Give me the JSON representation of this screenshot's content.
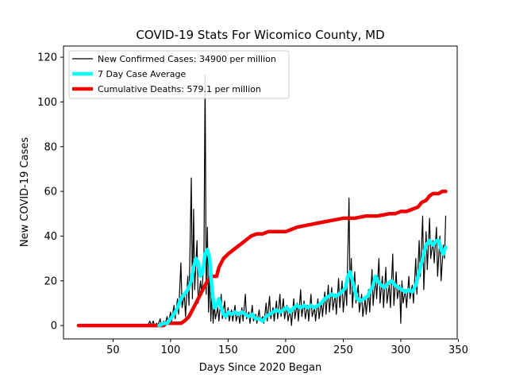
{
  "chart_data": {
    "type": "line",
    "title": "COVID-19 Stats For Wicomico County, MD",
    "xlabel": "Days Since 2020 Began",
    "ylabel": "New COVID-19 Cases",
    "xlim": [
      7,
      349
    ],
    "ylim": [
      -6,
      125
    ],
    "xticks": [
      50,
      100,
      150,
      200,
      250,
      300,
      350
    ],
    "yticks": [
      0,
      20,
      40,
      60,
      80,
      100,
      120
    ],
    "grid": false,
    "legend_position": "top-left",
    "series": [
      {
        "name": "New Confirmed Cases: 34900 per million",
        "color": "#000000",
        "points": [
          [
            20,
            0
          ],
          [
            80,
            0
          ],
          [
            82,
            2
          ],
          [
            83,
            0
          ],
          [
            85,
            2
          ],
          [
            86,
            0
          ],
          [
            88,
            1
          ],
          [
            89,
            0
          ],
          [
            91,
            3
          ],
          [
            92,
            0
          ],
          [
            94,
            2
          ],
          [
            95,
            0
          ],
          [
            97,
            4
          ],
          [
            98,
            1
          ],
          [
            100,
            6
          ],
          [
            101,
            2
          ],
          [
            103,
            9
          ],
          [
            104,
            3
          ],
          [
            106,
            12
          ],
          [
            107,
            5
          ],
          [
            109,
            28
          ],
          [
            110,
            8
          ],
          [
            112,
            14
          ],
          [
            113,
            4
          ],
          [
            115,
            22
          ],
          [
            116,
            9
          ],
          [
            118,
            66
          ],
          [
            119,
            12
          ],
          [
            120,
            52
          ],
          [
            121,
            16
          ],
          [
            123,
            38
          ],
          [
            124,
            10
          ],
          [
            126,
            20
          ],
          [
            127,
            14
          ],
          [
            129,
            28
          ],
          [
            130,
            112
          ],
          [
            131,
            14
          ],
          [
            132,
            44
          ],
          [
            133,
            6
          ],
          [
            134,
            26
          ],
          [
            135,
            2
          ],
          [
            136,
            16
          ],
          [
            137,
            1
          ],
          [
            138,
            10
          ],
          [
            139,
            3
          ],
          [
            141,
            8
          ],
          [
            142,
            2
          ],
          [
            144,
            14
          ],
          [
            145,
            3
          ],
          [
            147,
            11
          ],
          [
            148,
            3
          ],
          [
            150,
            8
          ],
          [
            151,
            2
          ],
          [
            153,
            7
          ],
          [
            154,
            2
          ],
          [
            156,
            9
          ],
          [
            157,
            2
          ],
          [
            159,
            6
          ],
          [
            160,
            1
          ],
          [
            162,
            8
          ],
          [
            163,
            2
          ],
          [
            165,
            14
          ],
          [
            166,
            3
          ],
          [
            168,
            6
          ],
          [
            169,
            1
          ],
          [
            171,
            9
          ],
          [
            172,
            2
          ],
          [
            174,
            5
          ],
          [
            175,
            1
          ],
          [
            177,
            7
          ],
          [
            178,
            2
          ],
          [
            180,
            4
          ],
          [
            181,
            1
          ],
          [
            183,
            10
          ],
          [
            184,
            2
          ],
          [
            186,
            13
          ],
          [
            187,
            3
          ],
          [
            189,
            8
          ],
          [
            190,
            2
          ],
          [
            192,
            11
          ],
          [
            193,
            3
          ],
          [
            195,
            14
          ],
          [
            196,
            4
          ],
          [
            198,
            12
          ],
          [
            199,
            3
          ],
          [
            201,
            9
          ],
          [
            202,
            2
          ],
          [
            204,
            7
          ],
          [
            205,
            0
          ],
          [
            207,
            12
          ],
          [
            208,
            3
          ],
          [
            210,
            10
          ],
          [
            211,
            2
          ],
          [
            213,
            16
          ],
          [
            214,
            4
          ],
          [
            216,
            11
          ],
          [
            217,
            3
          ],
          [
            219,
            9
          ],
          [
            220,
            2
          ],
          [
            222,
            14
          ],
          [
            223,
            4
          ],
          [
            225,
            8
          ],
          [
            226,
            2
          ],
          [
            228,
            12
          ],
          [
            229,
            3
          ],
          [
            231,
            11
          ],
          [
            232,
            4
          ],
          [
            234,
            15
          ],
          [
            235,
            5
          ],
          [
            237,
            18
          ],
          [
            238,
            6
          ],
          [
            240,
            17
          ],
          [
            241,
            7
          ],
          [
            243,
            14
          ],
          [
            244,
            5
          ],
          [
            246,
            21
          ],
          [
            247,
            8
          ],
          [
            249,
            20
          ],
          [
            250,
            6
          ],
          [
            252,
            18
          ],
          [
            253,
            9
          ],
          [
            255,
            57
          ],
          [
            256,
            14
          ],
          [
            257,
            30
          ],
          [
            258,
            8
          ],
          [
            260,
            24
          ],
          [
            261,
            10
          ],
          [
            263,
            18
          ],
          [
            264,
            6
          ],
          [
            266,
            14
          ],
          [
            267,
            4
          ],
          [
            269,
            12
          ],
          [
            270,
            5
          ],
          [
            272,
            16
          ],
          [
            273,
            6
          ],
          [
            275,
            25
          ],
          [
            276,
            9
          ],
          [
            278,
            22
          ],
          [
            279,
            12
          ],
          [
            281,
            30
          ],
          [
            282,
            10
          ],
          [
            284,
            22
          ],
          [
            285,
            8
          ],
          [
            287,
            26
          ],
          [
            288,
            10
          ],
          [
            290,
            18
          ],
          [
            291,
            8
          ],
          [
            293,
            32
          ],
          [
            294,
            9
          ],
          [
            296,
            24
          ],
          [
            297,
            12
          ],
          [
            299,
            18
          ],
          [
            300,
            1
          ],
          [
            301,
            20
          ],
          [
            302,
            10
          ],
          [
            304,
            16
          ],
          [
            305,
            8
          ],
          [
            307,
            22
          ],
          [
            308,
            12
          ],
          [
            310,
            18
          ],
          [
            311,
            10
          ],
          [
            313,
            30
          ],
          [
            314,
            14
          ],
          [
            316,
            38
          ],
          [
            317,
            22
          ],
          [
            319,
            49
          ],
          [
            320,
            16
          ],
          [
            322,
            42
          ],
          [
            323,
            25
          ],
          [
            325,
            48
          ],
          [
            326,
            30
          ],
          [
            328,
            38
          ],
          [
            329,
            28
          ],
          [
            331,
            44
          ],
          [
            332,
            22
          ],
          [
            334,
            40
          ],
          [
            335,
            20
          ],
          [
            337,
            36
          ],
          [
            338,
            30
          ],
          [
            339,
            49
          ]
        ]
      },
      {
        "name": "7 Day Case Average",
        "color": "#00ffff",
        "points": [
          [
            90,
            0
          ],
          [
            94,
            1
          ],
          [
            97,
            1
          ],
          [
            100,
            3
          ],
          [
            103,
            5
          ],
          [
            106,
            8
          ],
          [
            109,
            12
          ],
          [
            112,
            14
          ],
          [
            115,
            16
          ],
          [
            118,
            20
          ],
          [
            120,
            26
          ],
          [
            122,
            30
          ],
          [
            124,
            28
          ],
          [
            126,
            22
          ],
          [
            128,
            24
          ],
          [
            130,
            32
          ],
          [
            132,
            34
          ],
          [
            134,
            30
          ],
          [
            136,
            16
          ],
          [
            138,
            8
          ],
          [
            140,
            9
          ],
          [
            142,
            12
          ],
          [
            144,
            8
          ],
          [
            146,
            5
          ],
          [
            148,
            4
          ],
          [
            150,
            6
          ],
          [
            153,
            5
          ],
          [
            156,
            6
          ],
          [
            159,
            5
          ],
          [
            162,
            6
          ],
          [
            165,
            5
          ],
          [
            168,
            4
          ],
          [
            171,
            5
          ],
          [
            174,
            3
          ],
          [
            177,
            3
          ],
          [
            180,
            2
          ],
          [
            183,
            4
          ],
          [
            186,
            5
          ],
          [
            189,
            6
          ],
          [
            192,
            7
          ],
          [
            195,
            6
          ],
          [
            198,
            7
          ],
          [
            201,
            8
          ],
          [
            204,
            6
          ],
          [
            207,
            8
          ],
          [
            210,
            9
          ],
          [
            213,
            8
          ],
          [
            216,
            9
          ],
          [
            219,
            8
          ],
          [
            222,
            9
          ],
          [
            225,
            8
          ],
          [
            228,
            9
          ],
          [
            231,
            10
          ],
          [
            234,
            12
          ],
          [
            237,
            13
          ],
          [
            240,
            14
          ],
          [
            243,
            13
          ],
          [
            246,
            14
          ],
          [
            249,
            15
          ],
          [
            252,
            17
          ],
          [
            254,
            22
          ],
          [
            256,
            24
          ],
          [
            258,
            20
          ],
          [
            260,
            16
          ],
          [
            262,
            12
          ],
          [
            265,
            11
          ],
          [
            268,
            12
          ],
          [
            271,
            13
          ],
          [
            274,
            16
          ],
          [
            276,
            18
          ],
          [
            278,
            22
          ],
          [
            280,
            20
          ],
          [
            283,
            18
          ],
          [
            286,
            17
          ],
          [
            289,
            19
          ],
          [
            292,
            20
          ],
          [
            295,
            18
          ],
          [
            298,
            17
          ],
          [
            301,
            16
          ],
          [
            304,
            15
          ],
          [
            307,
            16
          ],
          [
            310,
            15
          ],
          [
            313,
            18
          ],
          [
            316,
            24
          ],
          [
            319,
            30
          ],
          [
            322,
            36
          ],
          [
            325,
            38
          ],
          [
            328,
            36
          ],
          [
            331,
            38
          ],
          [
            333,
            38
          ],
          [
            335,
            34
          ],
          [
            337,
            32
          ],
          [
            338,
            34
          ],
          [
            339,
            35
          ]
        ]
      },
      {
        "name": "Cumulative Deaths: 579.1 per million",
        "color": "#ee0000",
        "points": [
          [
            20,
            0
          ],
          [
            94,
            0
          ],
          [
            96,
            1
          ],
          [
            109,
            1
          ],
          [
            112,
            2
          ],
          [
            116,
            4
          ],
          [
            120,
            8
          ],
          [
            124,
            12
          ],
          [
            128,
            16
          ],
          [
            132,
            20
          ],
          [
            136,
            22
          ],
          [
            140,
            22
          ],
          [
            142,
            26
          ],
          [
            146,
            30
          ],
          [
            150,
            32
          ],
          [
            155,
            34
          ],
          [
            160,
            36
          ],
          [
            165,
            38
          ],
          [
            170,
            40
          ],
          [
            175,
            41
          ],
          [
            180,
            41
          ],
          [
            185,
            42
          ],
          [
            190,
            42
          ],
          [
            200,
            42
          ],
          [
            205,
            43
          ],
          [
            210,
            44
          ],
          [
            220,
            45
          ],
          [
            230,
            46
          ],
          [
            240,
            47
          ],
          [
            250,
            48
          ],
          [
            260,
            48
          ],
          [
            270,
            49
          ],
          [
            280,
            49
          ],
          [
            290,
            50
          ],
          [
            295,
            50
          ],
          [
            300,
            51
          ],
          [
            305,
            51
          ],
          [
            310,
            52
          ],
          [
            315,
            53
          ],
          [
            318,
            55
          ],
          [
            322,
            56
          ],
          [
            325,
            58
          ],
          [
            328,
            59
          ],
          [
            333,
            59
          ],
          [
            336,
            60
          ],
          [
            339,
            60
          ]
        ]
      }
    ]
  }
}
